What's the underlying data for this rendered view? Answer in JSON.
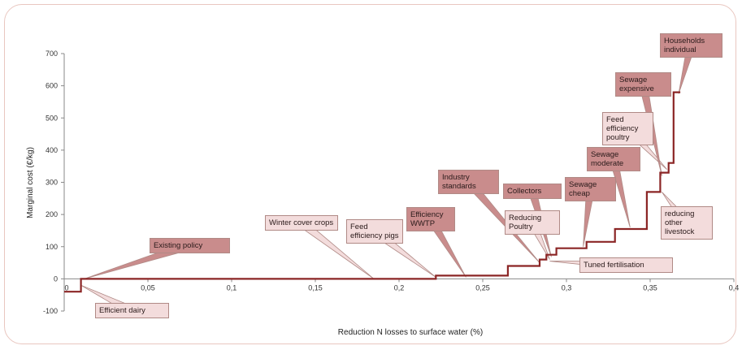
{
  "chart_data": {
    "type": "line",
    "title": "",
    "xlabel": "Reduction N losses to surface water (%)",
    "ylabel": "Marginal cost (€/kg)",
    "xlim": [
      0,
      0.4
    ],
    "ylim": [
      -100,
      700
    ],
    "x_ticks": [
      "0",
      "0,05",
      "0,1",
      "0,15",
      "0,2",
      "0,25",
      "0,3",
      "0,35",
      "0,4"
    ],
    "y_ticks": [
      "-100",
      "0",
      "100",
      "200",
      "300",
      "400",
      "500",
      "600",
      "700"
    ],
    "line_color": "#8b2525",
    "grid": false,
    "legend": "none",
    "series": [
      {
        "points": [
          [
            0.0,
            -40
          ],
          [
            0.01,
            -40
          ],
          [
            0.01,
            0
          ],
          [
            0.222,
            0
          ],
          [
            0.222,
            10
          ],
          [
            0.265,
            10
          ],
          [
            0.265,
            40
          ],
          [
            0.284,
            40
          ],
          [
            0.284,
            60
          ],
          [
            0.288,
            60
          ],
          [
            0.288,
            75
          ],
          [
            0.294,
            75
          ],
          [
            0.294,
            95
          ],
          [
            0.312,
            95
          ],
          [
            0.312,
            115
          ],
          [
            0.329,
            115
          ],
          [
            0.329,
            155
          ],
          [
            0.348,
            155
          ],
          [
            0.348,
            270
          ],
          [
            0.356,
            270
          ],
          [
            0.356,
            330
          ],
          [
            0.361,
            330
          ],
          [
            0.361,
            360
          ],
          [
            0.364,
            360
          ],
          [
            0.364,
            580
          ],
          [
            0.368,
            580
          ]
        ]
      }
    ],
    "annotations": [
      {
        "id": "efficient-dairy",
        "text": "Efficient dairy",
        "style": "light"
      },
      {
        "id": "existing-policy",
        "text": "Existing policy",
        "style": "dark"
      },
      {
        "id": "winter-cover-crops",
        "text": "Winter cover crops",
        "style": "light"
      },
      {
        "id": "feed-efficiency-pigs",
        "text": "Feed efficiency pigs",
        "style": "light"
      },
      {
        "id": "efficiency-wwtp",
        "text": "Efficiency WWTP",
        "style": "dark"
      },
      {
        "id": "industry-standards",
        "text": "Industry standards",
        "style": "dark"
      },
      {
        "id": "collectors",
        "text": "Collectors",
        "style": "dark"
      },
      {
        "id": "reducing-poultry",
        "text": "Reducing Poultry",
        "style": "light"
      },
      {
        "id": "tuned-fertilisation",
        "text": "Tuned fertilisation",
        "style": "light"
      },
      {
        "id": "sewage-cheap",
        "text": "Sewage cheap",
        "style": "dark"
      },
      {
        "id": "sewage-moderate",
        "text": "Sewage moderate",
        "style": "dark"
      },
      {
        "id": "feed-efficiency-poultry",
        "text": "Feed efficiency poultry",
        "style": "light"
      },
      {
        "id": "sewage-expensive",
        "text": "Sewage expensive",
        "style": "dark"
      },
      {
        "id": "households-individual",
        "text": "Households individual",
        "style": "dark"
      },
      {
        "id": "reducing-other-livestock",
        "text": "reducing other livestock",
        "style": "light"
      }
    ]
  }
}
